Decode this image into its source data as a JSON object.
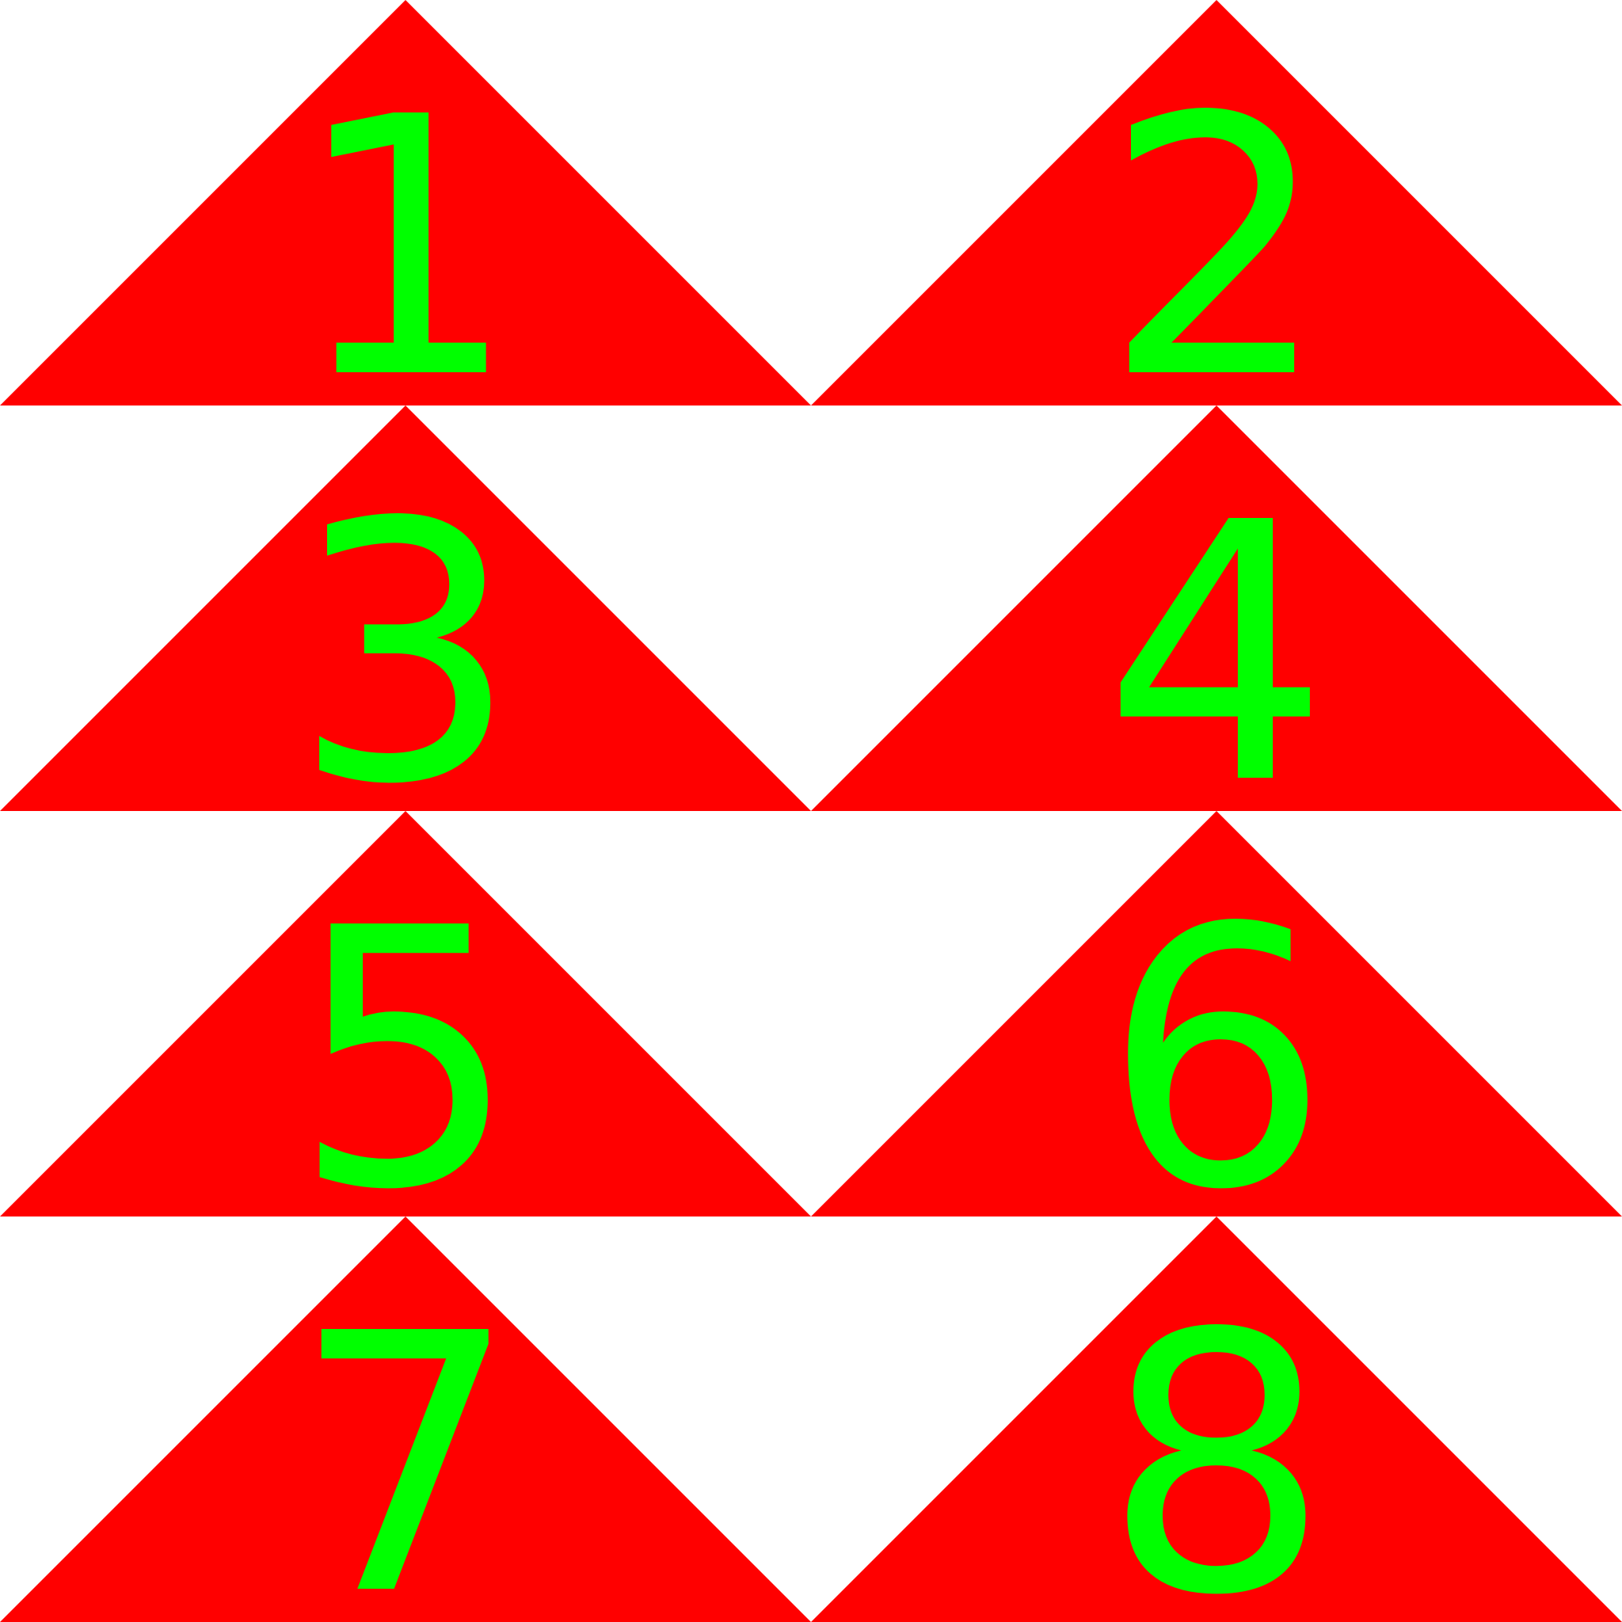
{
  "colors": {
    "background": "#ffffff",
    "triangle": "#ff0000",
    "numeral": "#00ff00"
  },
  "tiles": [
    {
      "label": "1"
    },
    {
      "label": "2"
    },
    {
      "label": "3"
    },
    {
      "label": "4"
    },
    {
      "label": "5"
    },
    {
      "label": "6"
    },
    {
      "label": "7"
    },
    {
      "label": "8"
    }
  ]
}
